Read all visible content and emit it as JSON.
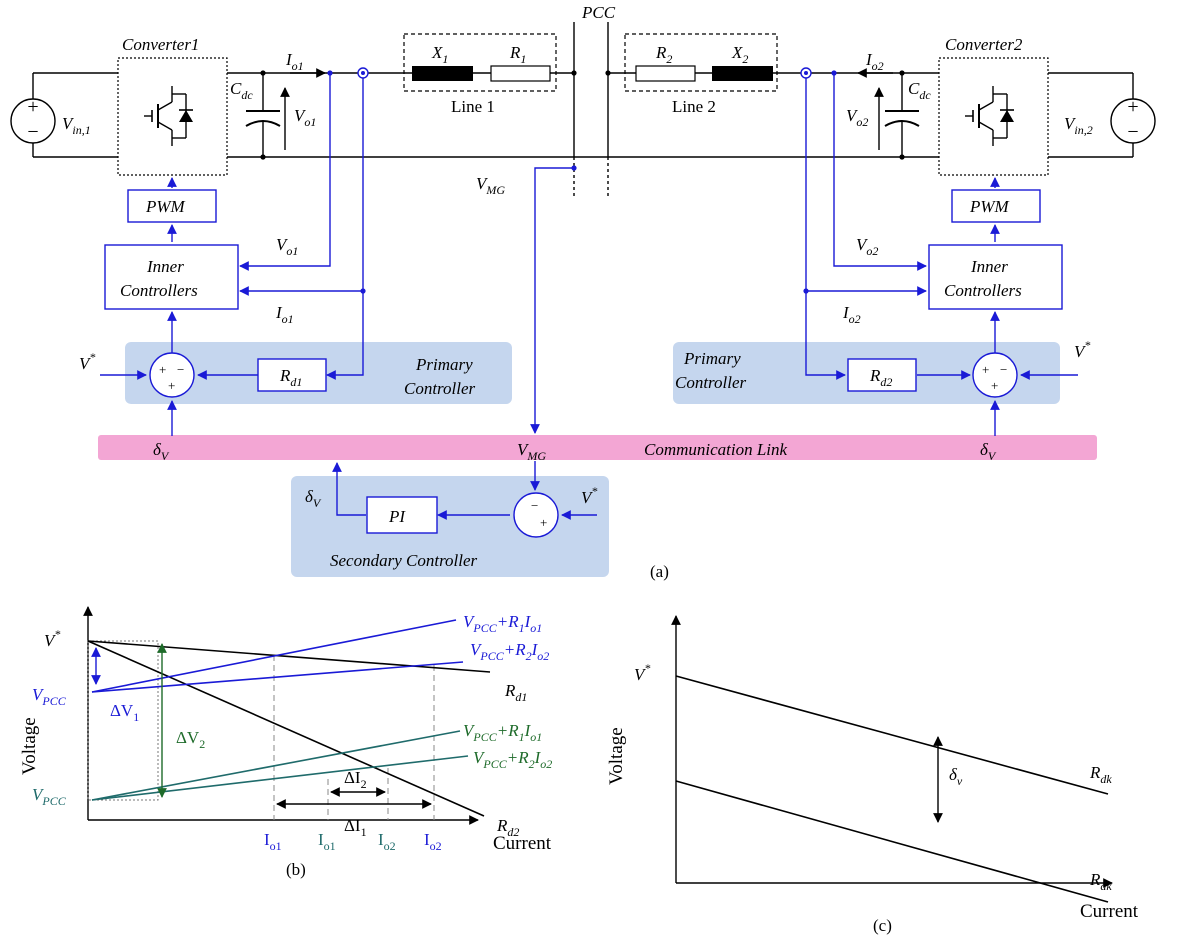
{
  "diagram": {
    "pcc": "PCC",
    "converter1": "Converter1",
    "converter2": "Converter2",
    "vin1": "V",
    "vin1_sub": "in,1",
    "vin2": "V",
    "vin2_sub": "in,2",
    "cdc": "C",
    "cdc_sub": "dc",
    "io1": "I",
    "io1_sub": "o1",
    "io2": "I",
    "io2_sub": "o2",
    "vo1": "V",
    "vo1_sub": "o1",
    "vo2": "V",
    "vo2_sub": "o2",
    "x1": "X",
    "x1_sub": "1",
    "r1": "R",
    "r1_sub": "1",
    "r2": "R",
    "r2_sub": "2",
    "x2": "X",
    "x2_sub": "2",
    "line1": "Line 1",
    "line2": "Line 2",
    "vmg": "V",
    "vmg_sub": "MG",
    "pwm": "PWM",
    "inner_line1": "Inner",
    "inner_line2": "Controllers",
    "vstar": "V",
    "vstar_sup": "*",
    "rd1": "R",
    "rd1_sub": "d1",
    "rd2": "R",
    "rd2_sub": "d2",
    "primary_line1": "Primary",
    "primary_line2": "Controller",
    "delta_v": "δ",
    "delta_v_sub": "V",
    "comm_link": "Communication Link",
    "pi": "PI",
    "secondary": "Secondary Controller",
    "plus": "+",
    "minus": "−",
    "label_a": "(a)"
  },
  "chart_data": [
    {
      "type": "line",
      "panel": "(b)",
      "xlabel": "Current",
      "ylabel": "Voltage",
      "vstar": "V",
      "vstar_sup": "*",
      "vpcc": "V",
      "vpcc_sub": "PCC",
      "series": [
        {
          "name": "R_d1",
          "label": "R",
          "sub": "d1",
          "color": "#000000"
        },
        {
          "name": "R_d2",
          "label": "R",
          "sub": "d2",
          "color": "#000000"
        },
        {
          "name": "V_PCC+R_1I_o1",
          "label": "V",
          "sub": "PCC",
          "tail": "+R",
          "tail_sub": "1",
          "tail2": "I",
          "tail2_sub": "o1",
          "color": "#1a1ad6"
        },
        {
          "name": "V_PCC+R_2I_o2",
          "label": "V",
          "sub": "PCC",
          "tail": "+R",
          "tail_sub": "2",
          "tail2": "I",
          "tail2_sub": "o2",
          "color": "#1a1ad6"
        },
        {
          "name": "V_PCC+R_1I_o1 (low)",
          "label": "V",
          "sub": "PCC",
          "tail": "+R",
          "tail_sub": "1",
          "tail2": "I",
          "tail2_sub": "o1",
          "color": "#1e6b2a"
        },
        {
          "name": "V_PCC+R_2I_o2 (low)",
          "label": "V",
          "sub": "PCC",
          "tail": "+R",
          "tail_sub": "2",
          "tail2": "I",
          "tail2_sub": "o2",
          "color": "#1e6b2a"
        }
      ],
      "delta_v1": "ΔV",
      "delta_v1_sub": "1",
      "delta_v2": "ΔV",
      "delta_v2_sub": "2",
      "delta_i1": "ΔI",
      "delta_i1_sub": "1",
      "delta_i2": "ΔI",
      "delta_i2_sub": "2",
      "x_ticks": [
        {
          "label": "I",
          "sub": "o1",
          "color": "#1a1ad6"
        },
        {
          "label": "I",
          "sub": "o1",
          "color": "#1f6b6b"
        },
        {
          "label": "I",
          "sub": "o2",
          "color": "#1f6b6b"
        },
        {
          "label": "I",
          "sub": "o2",
          "color": "#1a1ad6"
        }
      ]
    },
    {
      "type": "line",
      "panel": "(c)",
      "xlabel": "Current",
      "ylabel": "Voltage",
      "vstar": "V",
      "vstar_sup": "*",
      "series": [
        {
          "name": "R_dk (upper)",
          "label": "R",
          "sub": "dk"
        },
        {
          "name": "R_dk (lower)",
          "label": "R",
          "sub": "dk"
        }
      ],
      "shift": "δ",
      "shift_sub": "v"
    }
  ]
}
